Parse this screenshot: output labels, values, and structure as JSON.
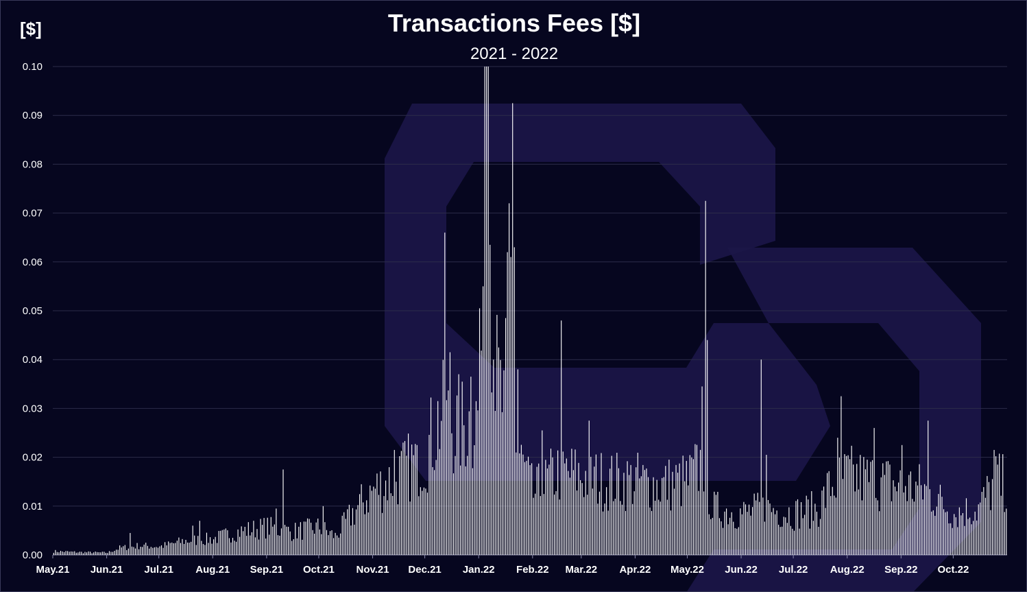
{
  "chart_data": {
    "type": "bar",
    "title": "Transactions Fees [$]",
    "subtitle": "2021 - 2022",
    "ylabel": "[$]",
    "ylim": [
      0,
      0.1
    ],
    "yticks": [
      "0.00",
      "0.01",
      "0.02",
      "0.03",
      "0.04",
      "0.05",
      "0.06",
      "0.07",
      "0.08",
      "0.09",
      "0.10"
    ],
    "grid": true,
    "legend": "none",
    "colors": {
      "background": "#06061f",
      "bars": "#ffffff",
      "grid": "#2c2c4a",
      "watermark": "#1c1648"
    },
    "xticks": [
      "May.21",
      "Jun.21",
      "Jul.21",
      "Aug.21",
      "Sep.21",
      "Oct.21",
      "Nov.21",
      "Dec.21",
      "Jan.22",
      "Feb.22",
      "Mar.22",
      "Apr.22",
      "May.22",
      "Jun.22",
      "Jul.22",
      "Aug.22",
      "Sep.22",
      "Oct.22"
    ],
    "anchors": [
      [
        "2021-05-01",
        0.0008
      ],
      [
        "2021-05-15",
        0.0006
      ],
      [
        "2021-06-01",
        0.0005
      ],
      [
        "2021-06-08",
        0.0015
      ],
      [
        "2021-06-20",
        0.002
      ],
      [
        "2021-07-01",
        0.0018
      ],
      [
        "2021-07-15",
        0.003
      ],
      [
        "2021-08-01",
        0.0035
      ],
      [
        "2021-08-15",
        0.005
      ],
      [
        "2021-09-01",
        0.006
      ],
      [
        "2021-09-15",
        0.005
      ],
      [
        "2021-10-01",
        0.006
      ],
      [
        "2021-10-10",
        0.004
      ],
      [
        "2021-10-20",
        0.009
      ],
      [
        "2021-11-01",
        0.014
      ],
      [
        "2021-11-15",
        0.017
      ],
      [
        "2021-12-01",
        0.022
      ],
      [
        "2021-12-10",
        0.03
      ],
      [
        "2021-12-20",
        0.027
      ],
      [
        "2022-01-01",
        0.03
      ],
      [
        "2022-01-10",
        0.04
      ],
      [
        "2022-01-18",
        0.025
      ],
      [
        "2022-01-25",
        0.02
      ],
      [
        "2022-02-01",
        0.013
      ],
      [
        "2022-02-15",
        0.018
      ],
      [
        "2022-03-01",
        0.017
      ],
      [
        "2022-03-15",
        0.016
      ],
      [
        "2022-04-01",
        0.016
      ],
      [
        "2022-04-15",
        0.015
      ],
      [
        "2022-05-01",
        0.016
      ],
      [
        "2022-05-10",
        0.02
      ],
      [
        "2022-05-15",
        0.01
      ],
      [
        "2022-06-01",
        0.009
      ],
      [
        "2022-06-15",
        0.01
      ],
      [
        "2022-07-01",
        0.009
      ],
      [
        "2022-07-15",
        0.01
      ],
      [
        "2022-07-22",
        0.015
      ],
      [
        "2022-08-01",
        0.017
      ],
      [
        "2022-08-15",
        0.016
      ],
      [
        "2022-09-01",
        0.015
      ],
      [
        "2022-09-15",
        0.014
      ],
      [
        "2022-10-01",
        0.009
      ],
      [
        "2022-10-15",
        0.01
      ],
      [
        "2022-10-25",
        0.016
      ],
      [
        "2022-10-31",
        0.015
      ]
    ],
    "spikes": [
      [
        "2021-06-14",
        0.0045
      ],
      [
        "2021-07-20",
        0.006
      ],
      [
        "2021-07-24",
        0.007
      ],
      [
        "2021-09-06",
        0.0095
      ],
      [
        "2021-09-10",
        0.0175
      ],
      [
        "2021-10-03",
        0.01
      ],
      [
        "2021-11-13",
        0.0215
      ],
      [
        "2021-11-26",
        0.0225
      ],
      [
        "2021-12-08",
        0.0315
      ],
      [
        "2021-12-12",
        0.066
      ],
      [
        "2021-12-15",
        0.0415
      ],
      [
        "2021-12-20",
        0.037
      ],
      [
        "2021-12-27",
        0.0365
      ],
      [
        "2022-01-01",
        0.0505
      ],
      [
        "2022-01-03",
        0.055
      ],
      [
        "2022-01-04",
        0.1
      ],
      [
        "2022-01-05",
        0.1
      ],
      [
        "2022-01-06",
        0.1
      ],
      [
        "2022-01-07",
        0.0635
      ],
      [
        "2022-01-09",
        0.04
      ],
      [
        "2022-01-16",
        0.0485
      ],
      [
        "2022-01-17",
        0.062
      ],
      [
        "2022-01-18",
        0.072
      ],
      [
        "2022-01-19",
        0.061
      ],
      [
        "2022-01-20",
        0.0925
      ],
      [
        "2022-01-21",
        0.063
      ],
      [
        "2022-01-23",
        0.038
      ],
      [
        "2022-02-06",
        0.0255
      ],
      [
        "2022-02-17",
        0.048
      ],
      [
        "2022-03-05",
        0.0275
      ],
      [
        "2022-05-09",
        0.0345
      ],
      [
        "2022-05-11",
        0.0725
      ],
      [
        "2022-05-12",
        0.044
      ],
      [
        "2022-06-12",
        0.04
      ],
      [
        "2022-06-15",
        0.0205
      ],
      [
        "2022-07-26",
        0.024
      ],
      [
        "2022-07-28",
        0.0325
      ],
      [
        "2022-08-16",
        0.026
      ],
      [
        "2022-09-01",
        0.0225
      ],
      [
        "2022-09-16",
        0.0275
      ],
      [
        "2022-10-24",
        0.0215
      ],
      [
        "2022-10-26",
        0.0185
      ]
    ]
  }
}
